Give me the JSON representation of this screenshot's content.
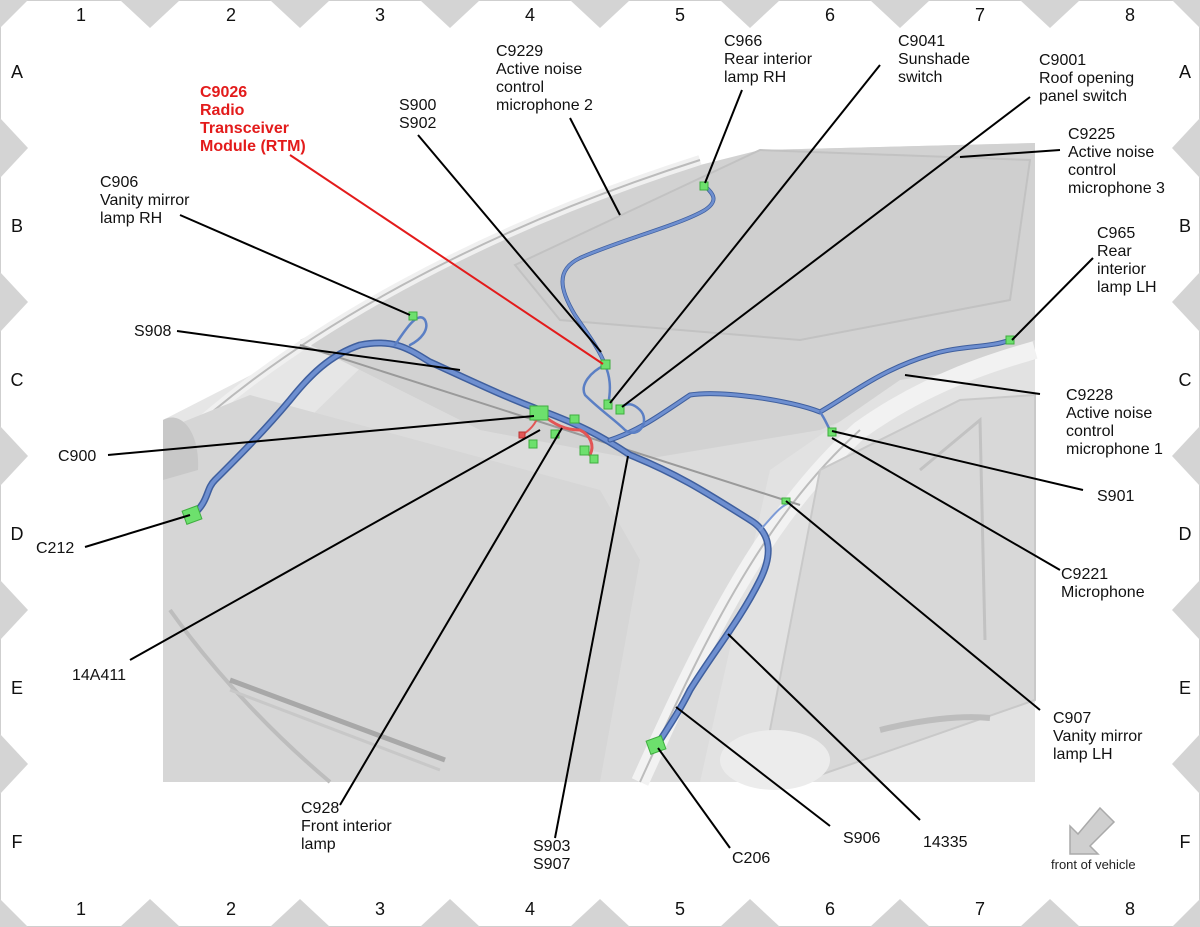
{
  "grid": {
    "columns": [
      "1",
      "2",
      "3",
      "4",
      "5",
      "6",
      "7",
      "8"
    ],
    "rows": [
      "A",
      "B",
      "C",
      "D",
      "E",
      "F"
    ]
  },
  "callouts": {
    "c9026": "C9026\nRadio\nTransceiver\nModule (RTM)",
    "s900_s902": "S900\nS902",
    "c9229": "C9229\nActive noise\ncontrol\nmicrophone 2",
    "c966": "C966\nRear interior\nlamp RH",
    "c9041": "C9041\nSunshade\nswitch",
    "c9001": "C9001\nRoof opening\npanel switch",
    "c9225": "C9225\nActive noise\ncontrol\nmicrophone 3",
    "c906": "C906\nVanity mirror\nlamp RH",
    "c965": "C965\nRear\ninterior\nlamp LH",
    "s908": "S908",
    "c9228": "C9228\nActive noise\ncontrol\nmicrophone 1",
    "c900": "C900",
    "s901": "S901",
    "c212": "C212",
    "c9221": "C9221\nMicrophone",
    "r14a411": "14A411",
    "c907": "C907\nVanity mirror\nlamp LH",
    "c928": "C928\nFront interior\nlamp",
    "s903_s907": "S903\nS907",
    "c206": "C206",
    "s906": "S906",
    "r14335": "14335"
  },
  "orientation": {
    "label": "front of vehicle",
    "icon": "arrow-down-left-icon"
  },
  "colors": {
    "harness": "#5b7fc4",
    "connector": "#6de06d",
    "highlight": "#e31b1b",
    "background": "#d9d9d9"
  }
}
